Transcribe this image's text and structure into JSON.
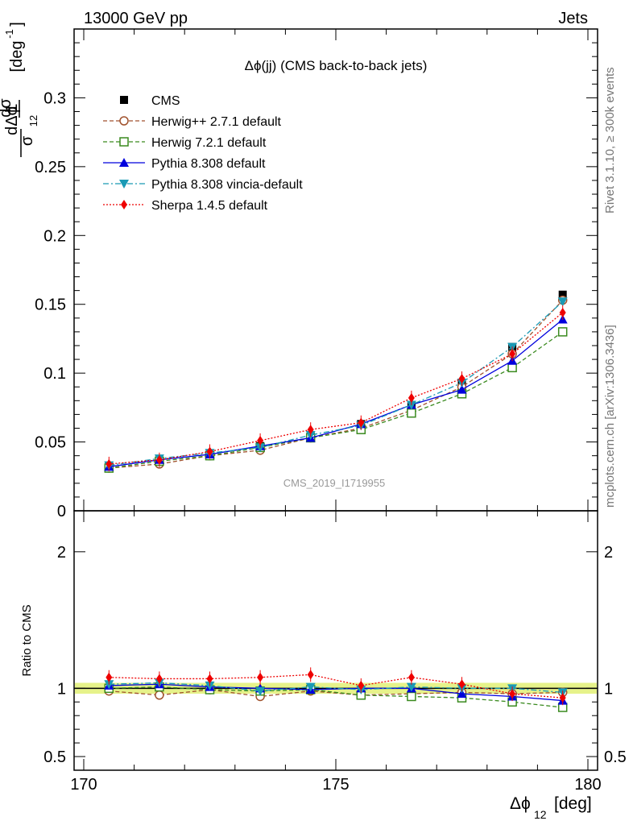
{
  "header": {
    "left": "13000 GeV pp",
    "right": "Jets"
  },
  "plot_title": "Δϕ(jj) (CMS back-to-back jets)",
  "analysis_label": "CMS_2019_I1719955",
  "side_labels": {
    "rivet": "Rivet 3.1.10, ≥ 300k events",
    "mcplots": "mcplots.cern.ch [arXiv:1306.3436]"
  },
  "y_label": {
    "num": "1",
    "d1": "dσ",
    "sigma": "σ",
    "d2": "dΔϕ",
    "sub": "12",
    "unit": "[deg",
    "unit_sup": "-1",
    "unit_close": "]"
  },
  "x_label": {
    "main": "Δϕ",
    "sub": "12",
    "unit": "[deg]"
  },
  "ratio_label": "Ratio to CMS",
  "chart_data": [
    {
      "type": "scatter",
      "title": "Δϕ(jj) (CMS back-to-back jets)",
      "xlim": [
        170,
        180
      ],
      "ylim": [
        0,
        0.35
      ],
      "y_ticks": [
        {
          "v": 0,
          "label": "0"
        },
        {
          "v": 0.05,
          "label": "0.05"
        },
        {
          "v": 0.1,
          "label": "0.1"
        },
        {
          "v": 0.15,
          "label": "0.15"
        },
        {
          "v": 0.2,
          "label": "0.2"
        },
        {
          "v": 0.25,
          "label": "0.25"
        },
        {
          "v": 0.3,
          "label": "0.3"
        }
      ],
      "x": [
        170.5,
        171.5,
        172.5,
        173.5,
        174.5,
        175.5,
        176.5,
        177.5,
        178.5,
        179.5
      ],
      "series": [
        {
          "name": "CMS",
          "color": "#000000",
          "marker": "square-filled",
          "line": "none",
          "values": [
            0.032,
            0.036,
            0.041,
            0.047,
            0.054,
            0.063,
            0.076,
            0.093,
            0.119,
            0.157
          ]
        },
        {
          "name": "Herwig++ 2.7.1 default",
          "color": "#a0522d",
          "marker": "circle-open",
          "line": "dashed",
          "values": [
            0.031,
            0.034,
            0.04,
            0.044,
            0.053,
            0.06,
            0.073,
            0.09,
            0.114,
            0.153
          ]
        },
        {
          "name": "Herwig 7.2.1 default",
          "color": "#3a8a1f",
          "marker": "square-open",
          "line": "dashed",
          "values": [
            0.031,
            0.036,
            0.04,
            0.046,
            0.053,
            0.059,
            0.071,
            0.085,
            0.104,
            0.13
          ]
        },
        {
          "name": "Pythia 8.308 default",
          "color": "#0000dd",
          "marker": "triangle-up",
          "line": "solid",
          "values": [
            0.032,
            0.037,
            0.041,
            0.047,
            0.053,
            0.063,
            0.077,
            0.088,
            0.109,
            0.139
          ]
        },
        {
          "name": "Pythia 8.308 vincia-default",
          "color": "#1a9ab5",
          "marker": "triangle-down",
          "line": "dashdot",
          "values": [
            0.033,
            0.038,
            0.042,
            0.046,
            0.055,
            0.062,
            0.077,
            0.093,
            0.119,
            0.152
          ]
        },
        {
          "name": "Sherpa 1.4.5 default",
          "color": "#ee0000",
          "marker": "diamond",
          "line": "dotted",
          "values": [
            0.034,
            0.037,
            0.043,
            0.051,
            0.059,
            0.064,
            0.082,
            0.096,
            0.114,
            0.144
          ]
        }
      ]
    },
    {
      "type": "line",
      "ylabel": "Ratio to CMS",
      "xlim": [
        170,
        180
      ],
      "ylim": [
        0.4,
        2.3
      ],
      "y_ticks": [
        {
          "v": 0.5,
          "label": "0.5"
        },
        {
          "v": 1,
          "label": "1"
        },
        {
          "v": 2,
          "label": "2"
        }
      ],
      "x_ticks": [
        {
          "v": 170,
          "label": "170"
        },
        {
          "v": 175,
          "label": "175"
        },
        {
          "v": 180,
          "label": "180"
        }
      ],
      "band": [
        0.96,
        1.04
      ],
      "x": [
        170.5,
        171.5,
        172.5,
        173.5,
        174.5,
        175.5,
        176.5,
        177.5,
        178.5,
        179.5
      ],
      "series": [
        {
          "name": "Herwig++ 2.7.1 default",
          "values": [
            0.98,
            0.95,
            0.99,
            0.94,
            0.98,
            0.95,
            0.96,
            0.97,
            0.96,
            0.97
          ]
        },
        {
          "name": "Herwig 7.2.1 default",
          "values": [
            1.0,
            1.01,
            0.99,
            0.98,
            0.99,
            0.95,
            0.94,
            0.93,
            0.9,
            0.86
          ]
        },
        {
          "name": "Pythia 8.308 default",
          "values": [
            1.02,
            1.03,
            1.01,
            1.0,
            0.99,
            1.0,
            1.0,
            0.96,
            0.94,
            0.91
          ]
        },
        {
          "name": "Pythia 8.308 vincia-default",
          "values": [
            1.03,
            1.04,
            1.02,
            0.98,
            1.01,
            0.99,
            1.01,
            1.0,
            1.0,
            0.97
          ]
        },
        {
          "name": "Sherpa 1.4.5 default",
          "values": [
            1.08,
            1.07,
            1.07,
            1.08,
            1.1,
            1.02,
            1.08,
            1.03,
            0.96,
            0.93
          ]
        }
      ]
    }
  ]
}
